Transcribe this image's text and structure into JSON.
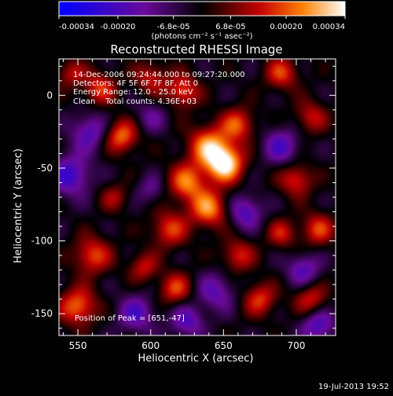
{
  "chart_data": {
    "type": "heatmap",
    "title": "Reconstructed RHESSI Image",
    "xlabel": "Heliocentric X (arcsec)",
    "ylabel": "Heliocentric Y (arcsec)",
    "xlim": [
      537,
      727
    ],
    "ylim": [
      -165,
      25
    ],
    "x_ticks": [
      550,
      600,
      650,
      700
    ],
    "y_ticks": [
      0,
      -50,
      -100,
      -150
    ],
    "colorbar": {
      "unit_label": "(photons cm⁻² s⁻¹ asec⁻²)",
      "range": [
        -0.00034,
        0.00034
      ],
      "tick_values": [
        -0.00034,
        -0.0002,
        -6.8e-05,
        6.8e-05,
        0.0002,
        0.00034
      ],
      "tick_labels": [
        "-0.00034",
        "-0.00020",
        "-6.8e-05",
        "6.8e-05",
        "0.00020",
        "0.00034"
      ],
      "colors": [
        "#0000ff",
        "#6a0a9a",
        "#000000",
        "#c40000",
        "#ff8000",
        "#ffffff"
      ]
    },
    "info_lines": [
      "14-Dec-2006 09:24:44.000 to 09:27:20.000",
      "Detectors: 4F 5F 6F 7F 8F, Att 0",
      "Energy Range: 12.0 - 25.0 keV",
      "Clean    Total counts: 4.36E+03"
    ],
    "peak_label": "Position of Peak = [651,-47]",
    "peak_position": [
      651,
      -47
    ],
    "blobs": [
      {
        "x": 651,
        "y": -47,
        "v": 1.0,
        "s": 9
      },
      {
        "x": 640,
        "y": -35,
        "v": 0.75,
        "s": 10
      },
      {
        "x": 625,
        "y": -60,
        "v": 0.7,
        "s": 9
      },
      {
        "x": 660,
        "y": -20,
        "v": 0.6,
        "s": 8
      },
      {
        "x": 640,
        "y": -78,
        "v": 0.75,
        "s": 9
      },
      {
        "x": 613,
        "y": -92,
        "v": 0.55,
        "s": 9
      },
      {
        "x": 580,
        "y": -28,
        "v": 0.7,
        "s": 8
      },
      {
        "x": 565,
        "y": 5,
        "v": 0.55,
        "s": 8
      },
      {
        "x": 600,
        "y": 12,
        "v": 0.45,
        "s": 8
      },
      {
        "x": 622,
        "y": 3,
        "v": 0.6,
        "s": 8
      },
      {
        "x": 690,
        "y": 15,
        "v": 0.55,
        "s": 8
      },
      {
        "x": 710,
        "y": -15,
        "v": 0.45,
        "s": 8
      },
      {
        "x": 700,
        "y": -58,
        "v": 0.55,
        "s": 8
      },
      {
        "x": 715,
        "y": -92,
        "v": 0.55,
        "s": 8
      },
      {
        "x": 690,
        "y": -95,
        "v": 0.45,
        "s": 7
      },
      {
        "x": 560,
        "y": -110,
        "v": 0.6,
        "s": 9
      },
      {
        "x": 550,
        "y": -145,
        "v": 0.7,
        "s": 9
      },
      {
        "x": 595,
        "y": -118,
        "v": 0.45,
        "s": 7
      },
      {
        "x": 617,
        "y": -133,
        "v": 0.55,
        "s": 8
      },
      {
        "x": 660,
        "y": -110,
        "v": 0.5,
        "s": 8
      },
      {
        "x": 675,
        "y": -140,
        "v": 0.55,
        "s": 8
      },
      {
        "x": 710,
        "y": -140,
        "v": 0.5,
        "s": 8
      },
      {
        "x": 575,
        "y": -70,
        "v": 0.35,
        "s": 7
      },
      {
        "x": 545,
        "y": 15,
        "v": 0.4,
        "s": 7
      },
      {
        "x": 558,
        "y": -25,
        "v": -0.5,
        "s": 9
      },
      {
        "x": 545,
        "y": -55,
        "v": -0.6,
        "s": 10
      },
      {
        "x": 690,
        "y": -35,
        "v": -0.5,
        "s": 9
      },
      {
        "x": 665,
        "y": -80,
        "v": -0.55,
        "s": 8
      },
      {
        "x": 590,
        "y": -150,
        "v": -0.5,
        "s": 9
      },
      {
        "x": 645,
        "y": -135,
        "v": -0.45,
        "s": 9
      },
      {
        "x": 705,
        "y": -120,
        "v": -0.5,
        "s": 8
      },
      {
        "x": 600,
        "y": -65,
        "v": -0.3,
        "s": 7
      },
      {
        "x": 625,
        "y": -155,
        "v": -0.5,
        "s": 8
      },
      {
        "x": 715,
        "y": -158,
        "v": -0.55,
        "s": 8
      },
      {
        "x": 600,
        "y": -15,
        "v": -0.3,
        "s": 8
      }
    ]
  },
  "footer": {
    "timestamp": "19-Jul-2013 19:52"
  }
}
